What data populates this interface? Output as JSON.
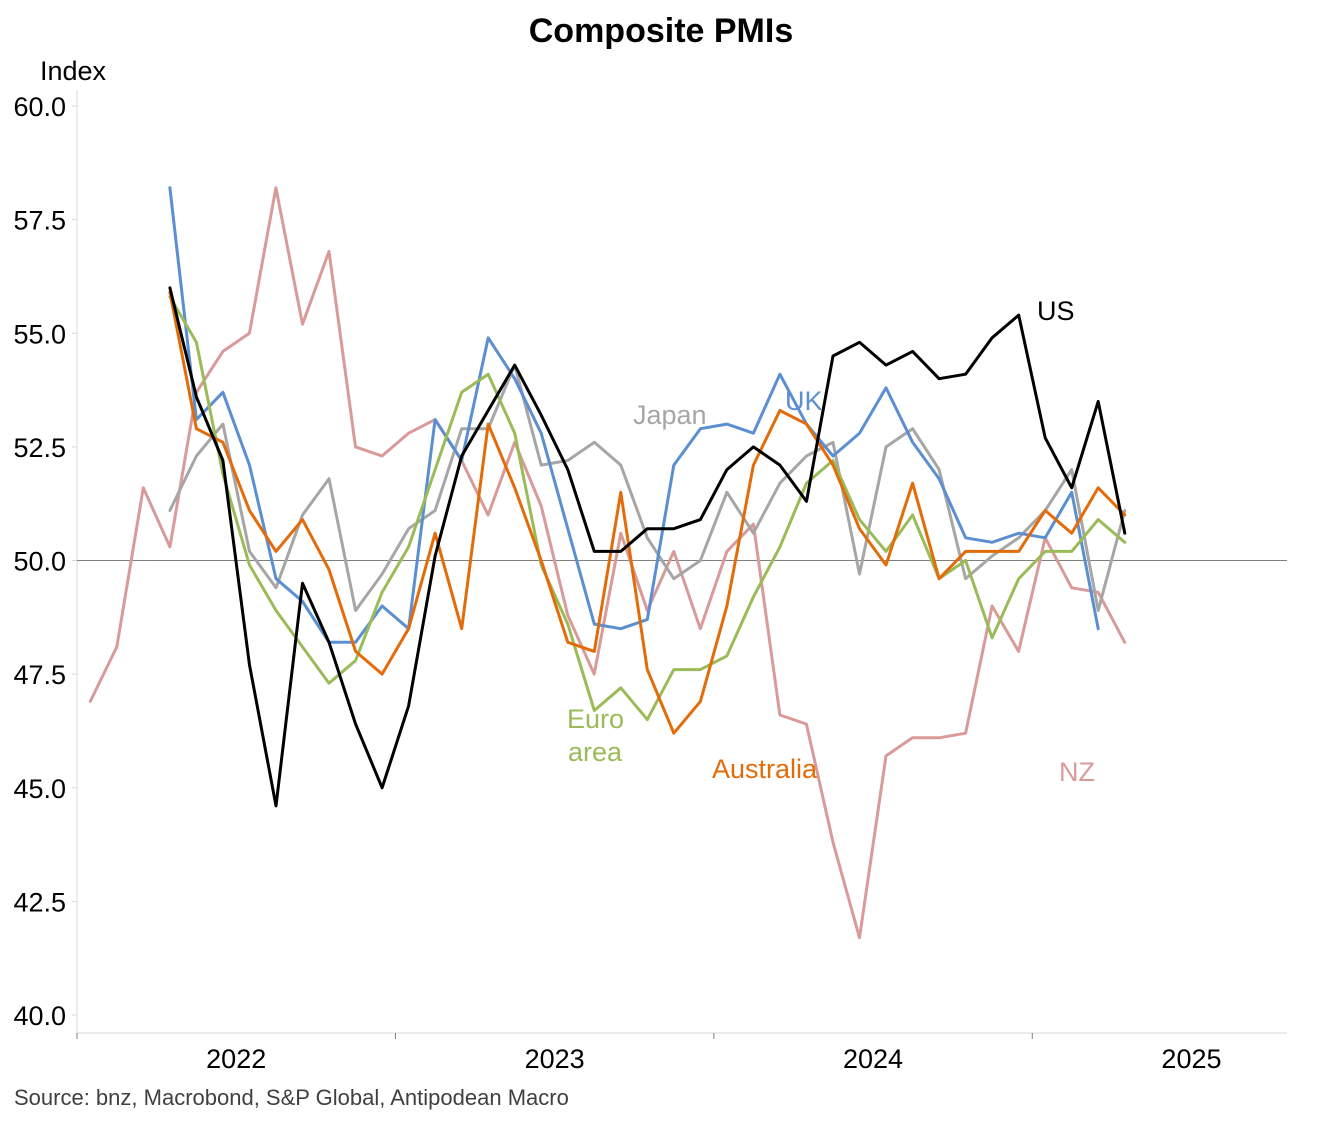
{
  "chart_data": {
    "type": "line",
    "title": "Composite PMIs",
    "ylabel": "Index",
    "xlabel": "",
    "ylim": [
      40,
      60
    ],
    "xlim": [
      2021.0,
      2024.8
    ],
    "y_ticks": [
      "40.0",
      "42.5",
      "45.0",
      "47.5",
      "50.0",
      "52.5",
      "55.0",
      "57.5",
      "60.0"
    ],
    "x_ticks": [
      {
        "label": "2022",
        "value": 2021.5
      },
      {
        "label": "2023",
        "value": 2022.5
      },
      {
        "label": "2024",
        "value": 2023.5
      },
      {
        "label": "2025",
        "value": 2024.5
      }
    ],
    "reference_line": 50,
    "source": "Source: bnz, Macrobond, S&P Global, Antipodean Macro",
    "series": [
      {
        "name": "NZ",
        "color": "#d99a9a",
        "x_start": 2021.0417,
        "x_step": 0.0833,
        "values": [
          46.9,
          48.1,
          51.6,
          50.3,
          53.7,
          54.6,
          55.0,
          58.2,
          55.2,
          56.8,
          52.5,
          52.3,
          52.8,
          53.1,
          52.2,
          51.0,
          52.6,
          51.2,
          48.8,
          47.5,
          50.6,
          48.9,
          50.2,
          48.5,
          50.2,
          50.8,
          46.6,
          46.4,
          43.8,
          41.7,
          45.7,
          46.1,
          46.1,
          46.2,
          49.0,
          48.0,
          50.5,
          49.4,
          49.3,
          48.2
        ]
      },
      {
        "name": "Japan",
        "color": "#a6a6a6",
        "x_start": 2021.2917,
        "x_step": 0.0833,
        "values": [
          51.1,
          52.3,
          53.0,
          50.2,
          49.4,
          51.0,
          51.8,
          48.9,
          49.7,
          50.7,
          51.1,
          52.9,
          52.9,
          54.3,
          52.1,
          52.2,
          52.6,
          52.1,
          50.5,
          49.6,
          50.0,
          51.5,
          50.6,
          51.7,
          52.3,
          52.6,
          49.7,
          52.5,
          52.9,
          52.0,
          49.6,
          50.1,
          50.5,
          51.1,
          52.0,
          48.9,
          51.1
        ]
      },
      {
        "name": "UK",
        "color": "#5b8fd1",
        "x_start": 2021.2917,
        "x_step": 0.0833,
        "values": [
          58.2,
          53.1,
          53.7,
          52.1,
          49.6,
          49.1,
          48.2,
          48.2,
          49.0,
          48.5,
          53.1,
          52.2,
          54.9,
          54.0,
          52.8,
          50.7,
          48.6,
          48.5,
          48.7,
          52.1,
          52.9,
          53.0,
          52.8,
          54.1,
          53.0,
          52.3,
          52.8,
          53.8,
          52.6,
          51.8,
          50.5,
          50.4,
          50.6,
          50.5,
          51.5,
          48.5
        ]
      },
      {
        "name": "Euro area",
        "color": "#9bbb59",
        "x_start": 2021.2917,
        "x_step": 0.0833,
        "values": [
          55.8,
          54.8,
          51.9,
          49.9,
          48.9,
          48.1,
          47.3,
          47.8,
          49.3,
          50.3,
          52.0,
          53.7,
          54.1,
          52.8,
          49.9,
          48.6,
          46.7,
          47.2,
          46.5,
          47.6,
          47.6,
          47.9,
          49.2,
          50.3,
          51.7,
          52.2,
          50.9,
          50.2,
          51.0,
          49.6,
          50.0,
          48.3,
          49.6,
          50.2,
          50.2,
          50.9,
          50.4
        ]
      },
      {
        "name": "Australia",
        "color": "#e36c0a",
        "x_start": 2021.2917,
        "x_step": 0.0833,
        "values": [
          55.9,
          52.9,
          52.6,
          51.1,
          50.2,
          50.9,
          49.8,
          48.0,
          47.5,
          48.5,
          50.6,
          48.5,
          53.0,
          51.6,
          50.0,
          48.2,
          48.0,
          51.5,
          47.6,
          46.2,
          46.9,
          49.0,
          52.1,
          53.3,
          53.0,
          52.1,
          50.7,
          49.9,
          51.7,
          49.6,
          50.2,
          50.2,
          50.2,
          51.1,
          50.6,
          51.6,
          51.0
        ]
      },
      {
        "name": "US",
        "color": "#000000",
        "x_start": 2021.2917,
        "x_step": 0.0833,
        "values": [
          56.0,
          53.6,
          52.2,
          47.7,
          44.6,
          49.5,
          48.2,
          46.4,
          45.0,
          46.8,
          50.1,
          52.3,
          53.3,
          54.3,
          53.2,
          52.0,
          50.2,
          50.2,
          50.7,
          50.7,
          50.9,
          52.0,
          52.5,
          52.1,
          51.3,
          54.5,
          54.8,
          54.3,
          54.6,
          54.0,
          54.1,
          54.9,
          55.4,
          52.7,
          51.6,
          53.5,
          50.6
        ]
      }
    ],
    "annotations": [
      {
        "text": "Japan",
        "series": "Japan"
      },
      {
        "text": "UK",
        "series": "UK"
      },
      {
        "text": "US",
        "series": "US"
      },
      {
        "text": "Euro",
        "series": "Euro area"
      },
      {
        "text": "area",
        "series": "Euro area"
      },
      {
        "text": "Australia",
        "series": "Australia"
      },
      {
        "text": "NZ",
        "series": "NZ"
      }
    ]
  }
}
